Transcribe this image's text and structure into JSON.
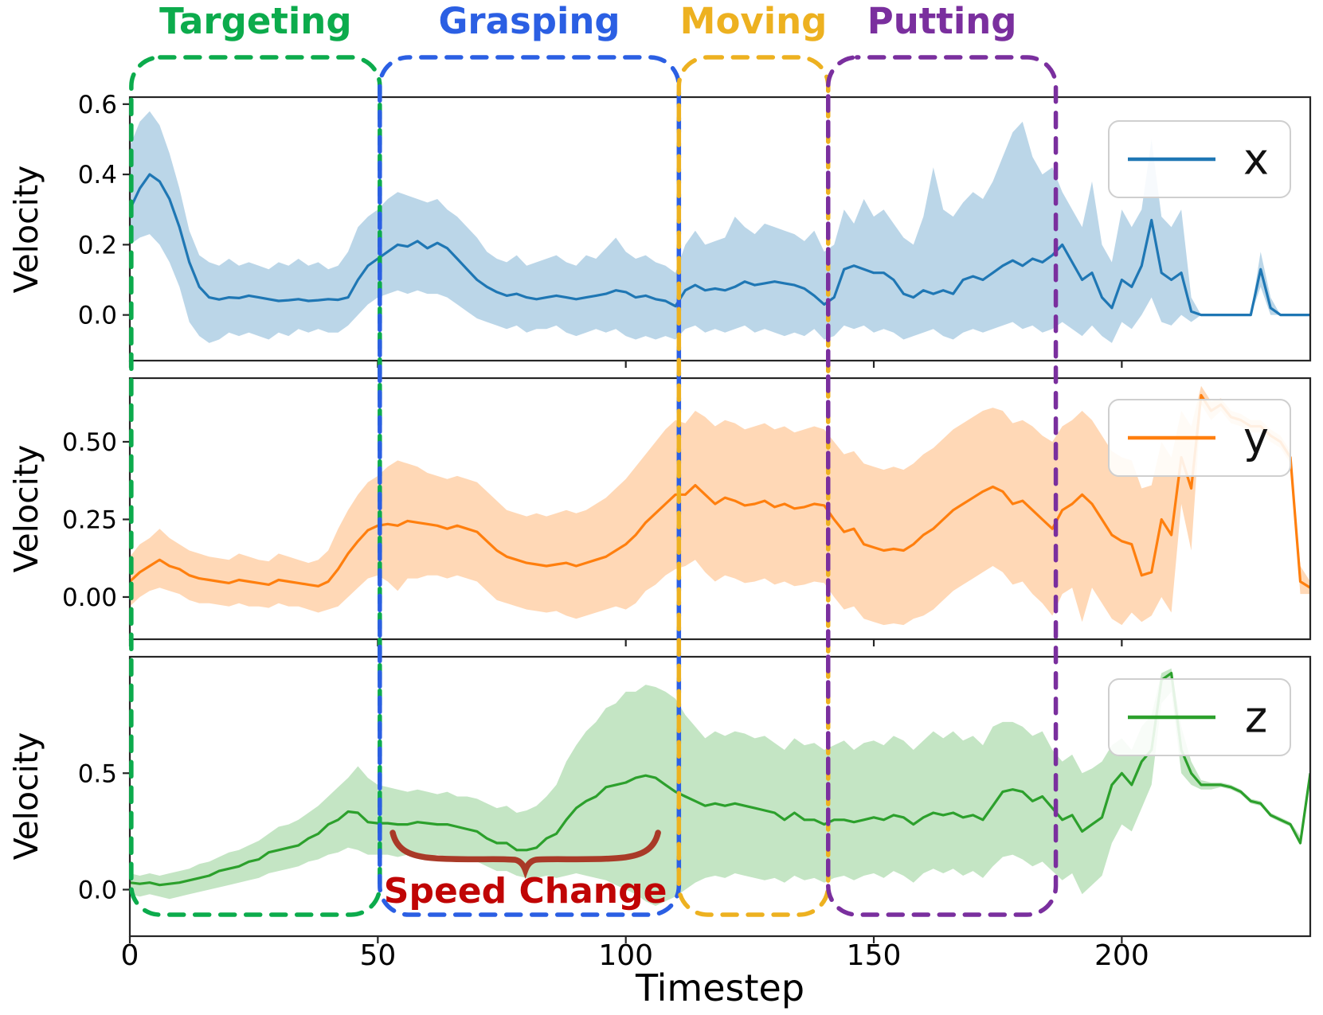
{
  "phases": [
    {
      "label": "Targeting",
      "color": "#0cab4c",
      "t_start": 0.3,
      "t_end": 50.4
    },
    {
      "label": "Grasping",
      "color": "#2b5fe3",
      "t_start": 50.4,
      "t_end": 110.7
    },
    {
      "label": "Moving",
      "color": "#edb120",
      "t_start": 110.7,
      "t_end": 140.8
    },
    {
      "label": "Putting",
      "color": "#7a2f9e",
      "t_start": 140.8,
      "t_end": 186.7
    }
  ],
  "annotation": {
    "label": "Speed Change",
    "text_color": "#c00505",
    "brace_color": "#a93a28",
    "t_start": 53,
    "t_end": 106.5
  },
  "x_axis": {
    "label": "Timestep",
    "ticks": [
      0,
      50,
      100,
      150,
      200
    ],
    "xlim": [
      0,
      238
    ]
  },
  "chart_data": [
    {
      "type": "line",
      "name": "x-velocity",
      "legend": "x",
      "ylabel": "Velocity",
      "line_color": "#1f77b4",
      "band_color": "rgba(31,119,180,0.30)",
      "yticks": [
        0.0,
        0.2,
        0.4,
        0.6
      ],
      "ytick_labels": [
        "0.0",
        "0.2",
        "0.4",
        "0.6"
      ],
      "ylim": [
        -0.13,
        0.62
      ],
      "t_start": 0,
      "t_step": 2,
      "mean": [
        0.3,
        0.36,
        0.4,
        0.38,
        0.33,
        0.25,
        0.15,
        0.08,
        0.05,
        0.044,
        0.05,
        0.048,
        0.055,
        0.05,
        0.045,
        0.04,
        0.042,
        0.045,
        0.04,
        0.042,
        0.045,
        0.043,
        0.05,
        0.1,
        0.14,
        0.16,
        0.18,
        0.2,
        0.195,
        0.21,
        0.19,
        0.205,
        0.19,
        0.16,
        0.13,
        0.1,
        0.08,
        0.065,
        0.055,
        0.06,
        0.05,
        0.045,
        0.05,
        0.055,
        0.05,
        0.045,
        0.05,
        0.055,
        0.06,
        0.07,
        0.065,
        0.05,
        0.055,
        0.045,
        0.04,
        0.025,
        0.07,
        0.085,
        0.07,
        0.075,
        0.07,
        0.08,
        0.095,
        0.085,
        0.09,
        0.095,
        0.09,
        0.085,
        0.075,
        0.055,
        0.03,
        0.05,
        0.13,
        0.14,
        0.13,
        0.12,
        0.12,
        0.1,
        0.06,
        0.05,
        0.07,
        0.06,
        0.07,
        0.06,
        0.1,
        0.11,
        0.1,
        0.12,
        0.14,
        0.155,
        0.14,
        0.16,
        0.15,
        0.17,
        0.2,
        0.15,
        0.1,
        0.12,
        0.05,
        0.02,
        0.1,
        0.08,
        0.14,
        0.27,
        0.12,
        0.1,
        0.12,
        0.01,
        0,
        0,
        0,
        0,
        0,
        0,
        0.13,
        0.02,
        0,
        0,
        0,
        0
      ],
      "hi": [
        0.48,
        0.55,
        0.58,
        0.54,
        0.46,
        0.36,
        0.24,
        0.17,
        0.15,
        0.14,
        0.16,
        0.14,
        0.15,
        0.14,
        0.13,
        0.15,
        0.14,
        0.16,
        0.14,
        0.15,
        0.13,
        0.14,
        0.18,
        0.25,
        0.28,
        0.3,
        0.33,
        0.35,
        0.34,
        0.33,
        0.32,
        0.33,
        0.3,
        0.28,
        0.25,
        0.22,
        0.18,
        0.16,
        0.15,
        0.17,
        0.14,
        0.15,
        0.16,
        0.17,
        0.15,
        0.14,
        0.17,
        0.16,
        0.19,
        0.22,
        0.18,
        0.16,
        0.17,
        0.15,
        0.14,
        0.12,
        0.2,
        0.24,
        0.2,
        0.21,
        0.22,
        0.28,
        0.25,
        0.23,
        0.26,
        0.25,
        0.24,
        0.23,
        0.21,
        0.24,
        0.18,
        0.2,
        0.3,
        0.26,
        0.33,
        0.28,
        0.3,
        0.26,
        0.22,
        0.2,
        0.28,
        0.42,
        0.3,
        0.28,
        0.32,
        0.35,
        0.33,
        0.38,
        0.45,
        0.52,
        0.55,
        0.45,
        0.4,
        0.42,
        0.35,
        0.3,
        0.25,
        0.38,
        0.2,
        0.15,
        0.3,
        0.25,
        0.3,
        0.5,
        0.28,
        0.25,
        0.3,
        0.05,
        0,
        0,
        0,
        0,
        0,
        0,
        0.18,
        0.05,
        0,
        0,
        0,
        0
      ],
      "lo": [
        0.2,
        0.22,
        0.23,
        0.2,
        0.15,
        0.08,
        -0.02,
        -0.06,
        -0.08,
        -0.07,
        -0.05,
        -0.06,
        -0.05,
        -0.06,
        -0.07,
        -0.05,
        -0.06,
        -0.04,
        -0.05,
        -0.04,
        -0.05,
        -0.05,
        -0.03,
        0,
        0.03,
        0.05,
        0.06,
        0.07,
        0.06,
        0.07,
        0.06,
        0.06,
        0.05,
        0.03,
        0.01,
        -0.01,
        -0.02,
        -0.03,
        -0.04,
        -0.03,
        -0.05,
        -0.04,
        -0.04,
        -0.03,
        -0.05,
        -0.06,
        -0.05,
        -0.04,
        -0.05,
        -0.04,
        -0.06,
        -0.07,
        -0.06,
        -0.07,
        -0.06,
        -0.07,
        -0.04,
        -0.03,
        -0.05,
        -0.04,
        -0.05,
        -0.04,
        -0.03,
        -0.05,
        -0.04,
        -0.05,
        -0.06,
        -0.05,
        -0.06,
        -0.04,
        -0.07,
        -0.06,
        -0.03,
        -0.04,
        -0.03,
        -0.05,
        -0.04,
        -0.05,
        -0.07,
        -0.06,
        -0.05,
        -0.04,
        -0.06,
        -0.07,
        -0.05,
        -0.04,
        -0.05,
        -0.04,
        -0.03,
        -0.02,
        -0.04,
        -0.03,
        -0.05,
        -0.04,
        -0.02,
        -0.04,
        -0.06,
        -0.03,
        -0.06,
        -0.08,
        -0.02,
        -0.04,
        0,
        0.05,
        -0.02,
        -0.03,
        0,
        -0.02,
        0,
        0,
        0,
        0,
        0,
        0,
        0.08,
        0,
        0,
        0,
        0,
        0
      ]
    },
    {
      "type": "line",
      "name": "y-velocity",
      "legend": "y",
      "ylabel": "Velocity",
      "line_color": "#ff7f0e",
      "band_color": "rgba(255,127,14,0.30)",
      "yticks": [
        0.0,
        0.25,
        0.5
      ],
      "ytick_labels": [
        "0.00",
        "0.25",
        "0.50"
      ],
      "ylim": [
        -0.136,
        0.705
      ],
      "t_start": 0,
      "t_step": 2,
      "mean": [
        0.05,
        0.08,
        0.1,
        0.12,
        0.1,
        0.09,
        0.07,
        0.06,
        0.055,
        0.05,
        0.045,
        0.055,
        0.05,
        0.045,
        0.04,
        0.055,
        0.05,
        0.045,
        0.04,
        0.035,
        0.05,
        0.09,
        0.14,
        0.18,
        0.215,
        0.23,
        0.235,
        0.23,
        0.245,
        0.24,
        0.235,
        0.23,
        0.22,
        0.23,
        0.22,
        0.21,
        0.18,
        0.15,
        0.13,
        0.12,
        0.11,
        0.105,
        0.1,
        0.105,
        0.11,
        0.1,
        0.11,
        0.12,
        0.13,
        0.15,
        0.17,
        0.2,
        0.24,
        0.27,
        0.3,
        0.33,
        0.33,
        0.36,
        0.33,
        0.3,
        0.32,
        0.31,
        0.295,
        0.3,
        0.31,
        0.29,
        0.3,
        0.285,
        0.29,
        0.3,
        0.295,
        0.25,
        0.21,
        0.22,
        0.17,
        0.16,
        0.15,
        0.155,
        0.15,
        0.17,
        0.2,
        0.22,
        0.25,
        0.28,
        0.3,
        0.32,
        0.34,
        0.355,
        0.34,
        0.3,
        0.31,
        0.28,
        0.25,
        0.22,
        0.28,
        0.3,
        0.33,
        0.3,
        0.25,
        0.2,
        0.18,
        0.17,
        0.07,
        0.08,
        0.25,
        0.2,
        0.45,
        0.35,
        0.65,
        0.6,
        0.62,
        0.58,
        0.57,
        0.55,
        0.55,
        0.52,
        0.5,
        0.45,
        0.05,
        0.03
      ],
      "hi": [
        0.13,
        0.17,
        0.19,
        0.22,
        0.19,
        0.17,
        0.15,
        0.14,
        0.13,
        0.125,
        0.12,
        0.14,
        0.13,
        0.12,
        0.115,
        0.14,
        0.13,
        0.12,
        0.11,
        0.12,
        0.15,
        0.22,
        0.28,
        0.33,
        0.37,
        0.39,
        0.42,
        0.44,
        0.43,
        0.42,
        0.4,
        0.39,
        0.38,
        0.39,
        0.38,
        0.37,
        0.34,
        0.31,
        0.28,
        0.27,
        0.26,
        0.27,
        0.26,
        0.27,
        0.28,
        0.27,
        0.28,
        0.3,
        0.32,
        0.35,
        0.38,
        0.42,
        0.46,
        0.5,
        0.54,
        0.57,
        0.56,
        0.6,
        0.58,
        0.55,
        0.57,
        0.56,
        0.54,
        0.55,
        0.56,
        0.54,
        0.55,
        0.53,
        0.54,
        0.55,
        0.54,
        0.5,
        0.46,
        0.47,
        0.43,
        0.42,
        0.41,
        0.42,
        0.41,
        0.43,
        0.46,
        0.48,
        0.51,
        0.54,
        0.56,
        0.58,
        0.6,
        0.61,
        0.6,
        0.56,
        0.57,
        0.55,
        0.52,
        0.5,
        0.55,
        0.57,
        0.6,
        0.57,
        0.52,
        0.47,
        0.45,
        0.44,
        0.35,
        0.36,
        0.5,
        0.45,
        0.6,
        0.55,
        0.68,
        0.63,
        0.64,
        0.6,
        0.59,
        0.57,
        0.57,
        0.54,
        0.52,
        0.47,
        0.1,
        0.05
      ],
      "lo": [
        -0.03,
        0,
        0.02,
        0.03,
        0.02,
        0.01,
        -0.01,
        -0.02,
        -0.02,
        -0.025,
        -0.03,
        -0.02,
        -0.03,
        -0.03,
        -0.035,
        -0.02,
        -0.03,
        -0.03,
        -0.04,
        -0.05,
        -0.04,
        -0.03,
        0,
        0.03,
        0.06,
        0.07,
        0.05,
        0.02,
        0.06,
        0.06,
        0.07,
        0.07,
        0.06,
        0.07,
        0.06,
        0.05,
        0.02,
        -0.01,
        -0.02,
        -0.03,
        -0.04,
        -0.045,
        -0.05,
        -0.045,
        -0.06,
        -0.07,
        -0.06,
        -0.05,
        -0.04,
        -0.03,
        -0.04,
        -0.02,
        0.02,
        0.04,
        0.07,
        0.09,
        0.1,
        0.12,
        0.08,
        0.05,
        0.07,
        0.06,
        0.045,
        0.05,
        0.06,
        0.04,
        0.05,
        0.035,
        0.04,
        0.05,
        0.045,
        0,
        -0.04,
        -0.03,
        -0.07,
        -0.08,
        -0.09,
        -0.085,
        -0.09,
        -0.07,
        -0.06,
        -0.04,
        -0.01,
        0.02,
        0.04,
        0.06,
        0.08,
        0.1,
        0.08,
        0.04,
        0.05,
        0.01,
        -0.02,
        -0.06,
        0.01,
        0.03,
        -0.08,
        0.03,
        -0.02,
        -0.07,
        -0.09,
        -0.05,
        -0.08,
        -0.06,
        0,
        -0.05,
        0.3,
        0.15,
        0.62,
        0.57,
        0.6,
        0.56,
        0.55,
        0.53,
        0.53,
        0.5,
        0.48,
        0.43,
        0.01,
        0.01
      ]
    },
    {
      "type": "line",
      "name": "z-velocity",
      "legend": "z",
      "ylabel": "Velocity",
      "line_color": "#2ca02c",
      "band_color": "rgba(44,160,44,0.28)",
      "yticks": [
        0.0,
        0.5
      ],
      "ytick_labels": [
        "0.0",
        "0.5"
      ],
      "ylim": [
        -0.2,
        1.0
      ],
      "t_start": 0,
      "t_step": 2,
      "mean": [
        0.03,
        0.025,
        0.03,
        0.02,
        0.025,
        0.03,
        0.04,
        0.05,
        0.06,
        0.08,
        0.09,
        0.1,
        0.12,
        0.13,
        0.16,
        0.17,
        0.18,
        0.19,
        0.22,
        0.24,
        0.28,
        0.3,
        0.335,
        0.33,
        0.29,
        0.285,
        0.285,
        0.28,
        0.28,
        0.29,
        0.285,
        0.28,
        0.28,
        0.27,
        0.26,
        0.25,
        0.22,
        0.2,
        0.2,
        0.17,
        0.17,
        0.18,
        0.22,
        0.24,
        0.3,
        0.35,
        0.38,
        0.4,
        0.44,
        0.45,
        0.46,
        0.48,
        0.49,
        0.48,
        0.45,
        0.42,
        0.4,
        0.38,
        0.36,
        0.37,
        0.36,
        0.37,
        0.36,
        0.35,
        0.34,
        0.33,
        0.3,
        0.33,
        0.3,
        0.3,
        0.28,
        0.3,
        0.3,
        0.29,
        0.3,
        0.31,
        0.3,
        0.32,
        0.31,
        0.28,
        0.31,
        0.33,
        0.32,
        0.33,
        0.31,
        0.32,
        0.3,
        0.36,
        0.42,
        0.43,
        0.42,
        0.38,
        0.4,
        0.35,
        0.3,
        0.32,
        0.25,
        0.28,
        0.31,
        0.45,
        0.5,
        0.45,
        0.55,
        0.6,
        0.9,
        0.93,
        0.6,
        0.5,
        0.45,
        0.45,
        0.45,
        0.44,
        0.42,
        0.38,
        0.37,
        0.32,
        0.3,
        0.28,
        0.2,
        0.5
      ],
      "hi": [
        0.07,
        0.06,
        0.07,
        0.06,
        0.07,
        0.08,
        0.09,
        0.11,
        0.12,
        0.14,
        0.16,
        0.17,
        0.19,
        0.21,
        0.24,
        0.27,
        0.28,
        0.3,
        0.33,
        0.36,
        0.4,
        0.44,
        0.48,
        0.53,
        0.48,
        0.45,
        0.44,
        0.43,
        0.42,
        0.43,
        0.42,
        0.41,
        0.42,
        0.4,
        0.4,
        0.39,
        0.37,
        0.35,
        0.36,
        0.33,
        0.34,
        0.36,
        0.4,
        0.45,
        0.55,
        0.62,
        0.68,
        0.72,
        0.78,
        0.8,
        0.85,
        0.85,
        0.88,
        0.87,
        0.85,
        0.82,
        0.75,
        0.7,
        0.65,
        0.68,
        0.66,
        0.68,
        0.67,
        0.65,
        0.66,
        0.63,
        0.6,
        0.65,
        0.62,
        0.63,
        0.6,
        0.62,
        0.64,
        0.6,
        0.63,
        0.64,
        0.62,
        0.66,
        0.64,
        0.6,
        0.64,
        0.68,
        0.65,
        0.68,
        0.64,
        0.66,
        0.62,
        0.7,
        0.72,
        0.72,
        0.7,
        0.66,
        0.68,
        0.6,
        0.55,
        0.58,
        0.5,
        0.52,
        0.55,
        0.62,
        0.65,
        0.6,
        0.7,
        0.75,
        0.93,
        0.95,
        0.7,
        0.55,
        0.47,
        0.46,
        0.46,
        0.45,
        0.43,
        0.39,
        0.38,
        0.33,
        0.31,
        0.29,
        0.23,
        0.51
      ],
      "lo": [
        -0.02,
        -0.03,
        -0.02,
        -0.03,
        -0.04,
        -0.03,
        -0.02,
        -0.01,
        0,
        0.01,
        0.02,
        0.03,
        0.04,
        0.05,
        0.07,
        0.08,
        0.09,
        0.1,
        0.12,
        0.13,
        0.15,
        0.16,
        0.18,
        0.17,
        0.15,
        0.15,
        0.15,
        0.14,
        0.15,
        0.15,
        0.14,
        0.15,
        0.14,
        0.13,
        0.13,
        0.12,
        0.1,
        0.08,
        0.08,
        0.06,
        0.05,
        0.05,
        0.06,
        0.05,
        0.06,
        0.07,
        0.06,
        0.05,
        0.04,
        0.02,
        0,
        -0.02,
        -0.05,
        -0.07,
        -0.05,
        -0.03,
        0,
        0.03,
        0.05,
        0.06,
        0.05,
        0.07,
        0.06,
        0.05,
        0.04,
        0.05,
        0.03,
        0.06,
        0.04,
        0.05,
        0.03,
        0.05,
        0.06,
        0.04,
        0.06,
        0.07,
        0.05,
        0.08,
        0.06,
        0.03,
        0.07,
        0.09,
        0.07,
        0.09,
        0.06,
        0.08,
        0.05,
        0.1,
        0.14,
        0.15,
        0.13,
        0.1,
        0.12,
        0.08,
        0.04,
        0.07,
        -0.02,
        0.02,
        0.06,
        0.2,
        0.28,
        0.25,
        0.35,
        0.45,
        0.8,
        0.85,
        0.5,
        0.45,
        0.43,
        0.43,
        0.44,
        0.43,
        0.41,
        0.37,
        0.36,
        0.31,
        0.29,
        0.27,
        0.19,
        0.49
      ]
    }
  ]
}
